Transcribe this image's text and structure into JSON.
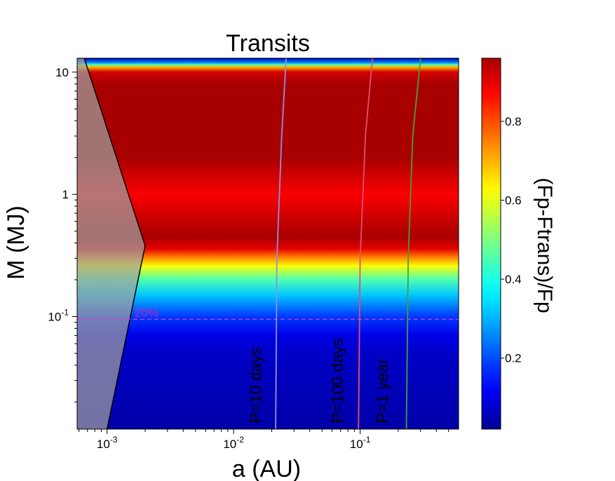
{
  "chart_data": {
    "type": "heatmap",
    "title": "Transits",
    "xlabel": "a (AU)",
    "ylabel": "M (MJ)",
    "colorbar_label": "(Fp-Ftrans)/Fp",
    "x_scale": "log",
    "y_scale": "log",
    "xlim": [
      0.00058,
      0.6
    ],
    "ylim": [
      0.012,
      13
    ],
    "colormap": "jet",
    "colorbar_range": [
      0.02,
      0.96
    ],
    "colorbar_ticks": [
      {
        "value": 0.2,
        "label": "0.2"
      },
      {
        "value": 0.4,
        "label": "0.4"
      },
      {
        "value": 0.6,
        "label": "0.6"
      },
      {
        "value": 0.8,
        "label": "0.8"
      }
    ],
    "x_ticks": [
      {
        "value": 0.001,
        "base": "10",
        "exp": "-3"
      },
      {
        "value": 0.01,
        "base": "10",
        "exp": "-2"
      },
      {
        "value": 0.1,
        "base": "10",
        "exp": "-1"
      }
    ],
    "y_ticks": [
      {
        "value": 10,
        "label": "10"
      },
      {
        "value": 1,
        "label": "1"
      },
      {
        "value": 0.1,
        "label": "10",
        "exp": "-1"
      }
    ],
    "fraction_vs_mass": [
      {
        "M": 0.012,
        "f": 0.04
      },
      {
        "M": 0.05,
        "f": 0.07
      },
      {
        "M": 0.07,
        "f": 0.1
      },
      {
        "M": 0.1,
        "f": 0.18
      },
      {
        "M": 0.15,
        "f": 0.32
      },
      {
        "M": 0.2,
        "f": 0.45
      },
      {
        "M": 0.26,
        "f": 0.62
      },
      {
        "M": 0.31,
        "f": 0.76
      },
      {
        "M": 0.36,
        "f": 0.9
      },
      {
        "M": 0.45,
        "f": 0.96
      },
      {
        "M": 1.0,
        "f": 0.88
      },
      {
        "M": 2.0,
        "f": 0.96
      },
      {
        "M": 8.0,
        "f": 0.96
      },
      {
        "M": 10.0,
        "f": 0.92
      },
      {
        "M": 11.0,
        "f": 0.7
      },
      {
        "M": 11.5,
        "f": 0.45
      },
      {
        "M": 12.0,
        "f": 0.25
      },
      {
        "M": 13.0,
        "f": 0.05
      }
    ],
    "excluded_region": {
      "color": "#a0a0a0",
      "boundary": [
        {
          "a": 0.00066,
          "M": 13
        },
        {
          "a": 0.002,
          "M": 0.38
        },
        {
          "a": 0.001,
          "M": 0.012
        }
      ]
    },
    "hline": {
      "M": 0.095,
      "label": "20%",
      "color": "#d040d0"
    },
    "period_curves": [
      {
        "label": "P=10 days",
        "color": "#9090e0",
        "points": [
          {
            "a": 0.0215,
            "M": 0.012
          },
          {
            "a": 0.022,
            "M": 0.3
          },
          {
            "a": 0.024,
            "M": 3
          },
          {
            "a": 0.026,
            "M": 13
          }
        ]
      },
      {
        "label": "P=100 days",
        "color": "#e05070",
        "points": [
          {
            "a": 0.097,
            "M": 0.012
          },
          {
            "a": 0.1,
            "M": 0.3
          },
          {
            "a": 0.11,
            "M": 3
          },
          {
            "a": 0.125,
            "M": 13
          }
        ]
      },
      {
        "label": "P=1 year",
        "color": "#40a040",
        "points": [
          {
            "a": 0.232,
            "M": 0.012
          },
          {
            "a": 0.24,
            "M": 0.3
          },
          {
            "a": 0.26,
            "M": 3
          },
          {
            "a": 0.3,
            "M": 13
          }
        ]
      }
    ]
  }
}
